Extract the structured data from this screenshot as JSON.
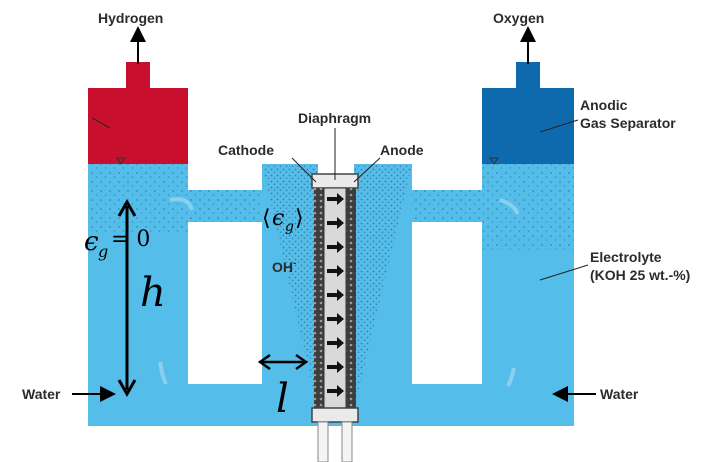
{
  "labels": {
    "hydrogen": "Hydrogen",
    "oxygen": "Oxygen",
    "diaphragm": "Diaphragm",
    "cathode": "Cathode",
    "anode": "Anode",
    "anodic_line1": "Anodic",
    "anodic_line2": "Gas Separator",
    "electrolyte_line1": "Electrolyte",
    "electrolyte_line2": "(KOH 25 wt.-%)",
    "water_left": "Water",
    "water_right": "Water",
    "ion": "OH",
    "ion_charge": "-"
  },
  "math": {
    "epsilon_sym": "ϵ",
    "epsilon_sub": "g",
    "epsilon_eq": "= 0",
    "avg_open": "⟨",
    "avg_close": "⟩",
    "height": "h",
    "length": "l"
  },
  "colors": {
    "electrolyte": "#55bde9",
    "hydrogen_gas": "#c8102e",
    "oxygen_gas": "#0e6aad",
    "electrode": "#3a3a3a",
    "bubble": "#1f5f8a"
  }
}
